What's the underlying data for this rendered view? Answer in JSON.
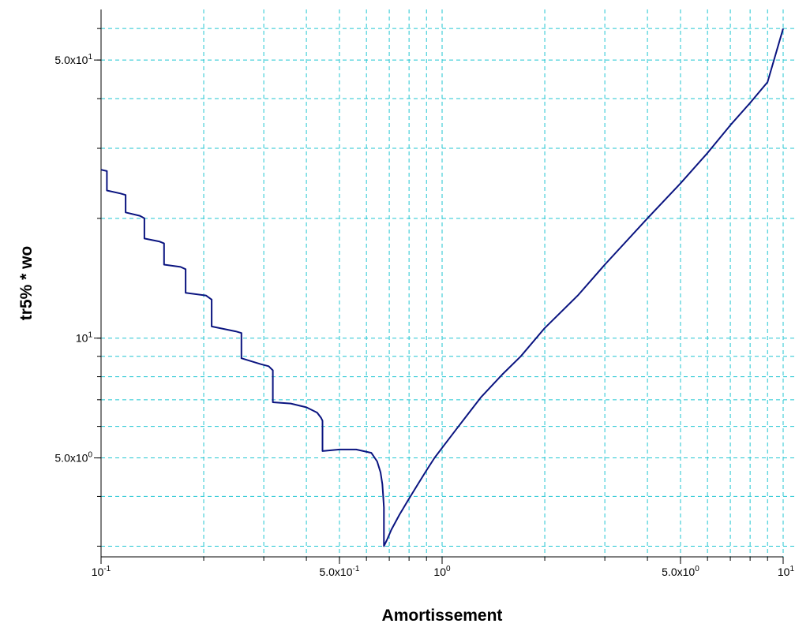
{
  "chart_data": {
    "type": "line",
    "title": "",
    "xlabel": "Amortissement",
    "ylabel": "tr5% * wo",
    "x_scale": "log",
    "y_scale": "log",
    "xlim": [
      0.1,
      10
    ],
    "ylim": [
      2.82,
      67
    ],
    "grid": true,
    "colors": {
      "line": "#0a1480",
      "grid": "#22c6d2",
      "axis": "#000000"
    },
    "x_ticks": [
      {
        "value": 0.1,
        "mantissa": "10",
        "exp": "-1"
      },
      {
        "value": 0.5,
        "mantissa": "5.0x10",
        "exp": "-1"
      },
      {
        "value": 1,
        "mantissa": "10",
        "exp": "0"
      },
      {
        "value": 5,
        "mantissa": "5.0x10",
        "exp": "0"
      },
      {
        "value": 10,
        "mantissa": "10",
        "exp": "1"
      }
    ],
    "y_ticks": [
      {
        "value": 5,
        "mantissa": "5.0x10",
        "exp": "0"
      },
      {
        "value": 10,
        "mantissa": "10",
        "exp": "1"
      },
      {
        "value": 50,
        "mantissa": "5.0x10",
        "exp": "1"
      }
    ],
    "x_grid": [
      0.2,
      0.3,
      0.4,
      0.5,
      0.6,
      0.7,
      0.8,
      0.9,
      1,
      2,
      3,
      4,
      5,
      6,
      7,
      8,
      9,
      10
    ],
    "y_grid": [
      3,
      4,
      5,
      6,
      7,
      8,
      9,
      10,
      20,
      30,
      40,
      50,
      60
    ],
    "series": [
      {
        "x": [
          0.1,
          0.104,
          0.104,
          0.114,
          0.118,
          0.118,
          0.13,
          0.134,
          0.134,
          0.148,
          0.153,
          0.153,
          0.171,
          0.177,
          0.177,
          0.203,
          0.211,
          0.211,
          0.248,
          0.258,
          0.258,
          0.294,
          0.31,
          0.319,
          0.319,
          0.36,
          0.4,
          0.43,
          0.442,
          0.446,
          0.446,
          0.5,
          0.56,
          0.62,
          0.645,
          0.66,
          0.668,
          0.672,
          0.675,
          0.675,
          0.69,
          0.71,
          0.75,
          0.8,
          0.85,
          0.9,
          0.95,
          1,
          1.1,
          1.2,
          1.3,
          1.5,
          1.7,
          2,
          2.5,
          3,
          4,
          5,
          6,
          7,
          8,
          9,
          10
        ],
        "y": [
          26.5,
          26.3,
          23.5,
          23.1,
          22.9,
          20.7,
          20.3,
          20.0,
          17.8,
          17.5,
          17.3,
          15.3,
          15.1,
          14.9,
          13.0,
          12.8,
          12.5,
          10.7,
          10.4,
          10.3,
          8.9,
          8.6,
          8.5,
          8.3,
          6.9,
          6.85,
          6.7,
          6.5,
          6.3,
          6.2,
          5.2,
          5.25,
          5.25,
          5.15,
          4.9,
          4.6,
          4.3,
          4.0,
          3.75,
          3.0,
          3.12,
          3.3,
          3.6,
          3.95,
          4.3,
          4.65,
          5.0,
          5.3,
          5.9,
          6.5,
          7.1,
          8.1,
          9.0,
          10.6,
          12.8,
          15.3,
          20.0,
          24.5,
          29.2,
          34.3,
          39.0,
          44.0,
          60.0
        ]
      }
    ]
  }
}
